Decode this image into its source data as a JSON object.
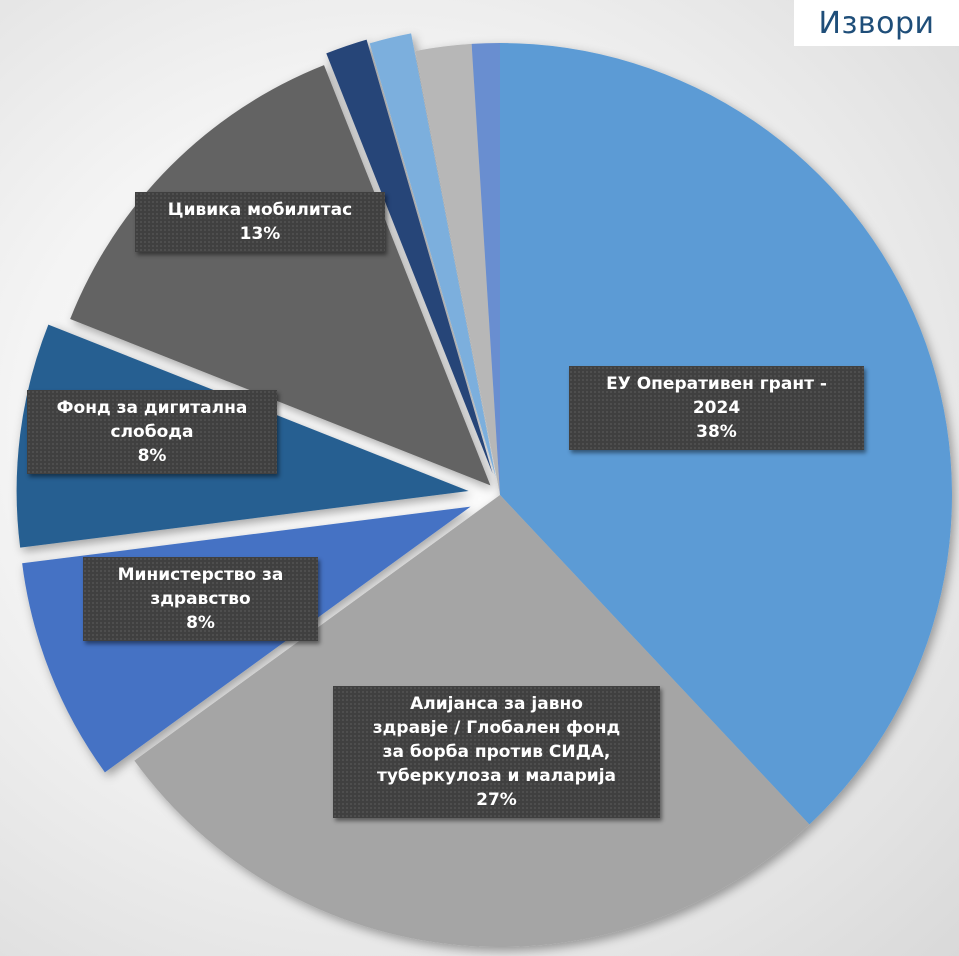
{
  "header": {
    "title": "Извори"
  },
  "chart_data": {
    "type": "pie",
    "title": "Извори",
    "slices": [
      {
        "label": "ЕУ Оперативен грант - 2024",
        "label_lines": [
          "ЕУ Оперативен грант -",
          "2024"
        ],
        "value": 38,
        "pct_label": "38%",
        "color": "#5b9bd5",
        "explode": 0
      },
      {
        "label": "Алијанса за јавно здравје / Глобален фонд за борба против СИДА, туберкулоза и маларија",
        "label_lines": [
          "Алијанса за јавно",
          "здравје / Глобален фонд",
          "за борба против СИДА,",
          "туберкулоза и маларија"
        ],
        "value": 27,
        "pct_label": "27%",
        "color": "#a5a5a5",
        "explode": 0
      },
      {
        "label": "Министерство за здравство",
        "label_lines": [
          "Министерство за",
          "здравство"
        ],
        "value": 8,
        "pct_label": "8%",
        "color": "#4472c4",
        "explode": 0.07
      },
      {
        "label": "Фонд за дигитална слобода",
        "label_lines": [
          "Фонд за дигитална",
          "слобода"
        ],
        "value": 8,
        "pct_label": "8%",
        "color": "#255e91",
        "explode": 0.07
      },
      {
        "label": "Цивика мобилитас",
        "label_lines": [
          "Цивика мобилитас"
        ],
        "value": 13,
        "pct_label": "13%",
        "color": "#636363",
        "explode": 0.03
      },
      {
        "label": "",
        "label_lines": [],
        "value": 1.5,
        "pct_label": "",
        "color": "#264478",
        "explode": 0.05
      },
      {
        "label": "",
        "label_lines": [],
        "value": 1.5,
        "pct_label": "",
        "color": "#7cafdd",
        "explode": 0.04
      },
      {
        "label": "",
        "label_lines": [],
        "value": 2,
        "pct_label": "",
        "color": "#b7b7b7",
        "explode": 0
      },
      {
        "label": "",
        "label_lines": [],
        "value": 1,
        "pct_label": "",
        "color": "#698ed0",
        "explode": 0
      }
    ]
  }
}
